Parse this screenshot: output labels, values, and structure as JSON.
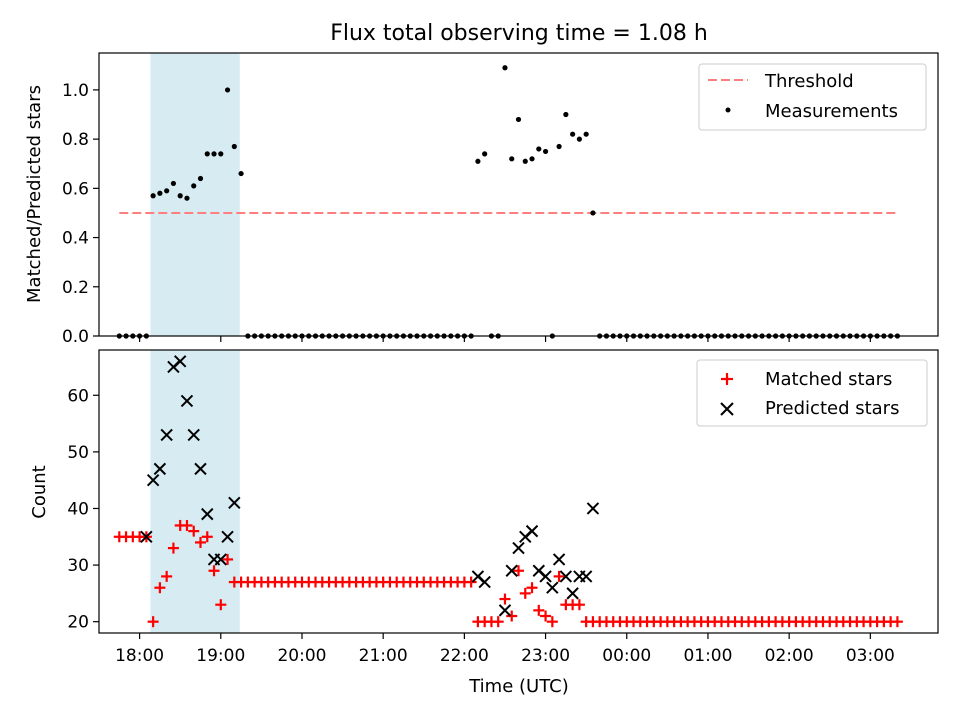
{
  "figure": {
    "title": "Flux total observing time = 1.08 h",
    "xlabel": "Time (UTC)"
  },
  "colors": {
    "threshold": "#ff7f7f",
    "measurements": "#000000",
    "matched": "#ff0000",
    "predicted": "#000000",
    "observing_window": "#add8e6"
  },
  "chart_data": [
    {
      "type": "scatter",
      "title": "Flux total observing time = 1.08 h",
      "ylabel": "Matched/Predicted stars",
      "xlabel": "",
      "x_unit": "UTC time (hours; values above 24 are after midnight)",
      "xlim": [
        "17:30",
        "03:50"
      ],
      "ylim": [
        0.0,
        1.15
      ],
      "yticks": [
        "0.0",
        "0.2",
        "0.4",
        "0.6",
        "0.8",
        "1.0"
      ],
      "legend_position": "top-right",
      "grid": false,
      "shaded_span": [
        "18:08",
        "19:14"
      ],
      "series": [
        {
          "name": "Threshold",
          "kind": "line-dashed",
          "x": [
            "17:45",
            "03:20"
          ],
          "y": [
            0.5,
            0.5
          ]
        },
        {
          "name": "Measurements",
          "kind": "dot",
          "x": [
            "17:45",
            "17:50",
            "17:55",
            "18:00",
            "18:05",
            "18:10",
            "18:15",
            "18:20",
            "18:25",
            "18:30",
            "18:35",
            "18:40",
            "18:45",
            "18:50",
            "18:55",
            "19:00",
            "19:05",
            "19:10",
            "19:15",
            "19:20",
            "19:25",
            "19:30",
            "19:35",
            "19:40",
            "19:45",
            "19:50",
            "19:55",
            "20:00",
            "20:05",
            "20:10",
            "20:15",
            "20:20",
            "20:25",
            "20:30",
            "20:35",
            "20:40",
            "20:45",
            "20:50",
            "20:55",
            "21:00",
            "21:05",
            "21:10",
            "21:15",
            "21:20",
            "21:25",
            "21:30",
            "21:35",
            "21:40",
            "21:45",
            "21:50",
            "21:55",
            "22:00",
            "22:05",
            "22:10",
            "22:15",
            "22:20",
            "22:25",
            "22:30",
            "22:35",
            "22:40",
            "22:45",
            "22:50",
            "22:55",
            "23:00",
            "23:05",
            "23:10",
            "23:15",
            "23:20",
            "23:25",
            "23:30",
            "23:35",
            "23:40",
            "23:45",
            "23:50",
            "23:55",
            "00:00",
            "00:05",
            "00:10",
            "00:15",
            "00:20",
            "00:25",
            "00:30",
            "00:35",
            "00:40",
            "00:45",
            "00:50",
            "00:55",
            "01:00",
            "01:05",
            "01:10",
            "01:15",
            "01:20",
            "01:25",
            "01:30",
            "01:35",
            "01:40",
            "01:45",
            "01:50",
            "01:55",
            "02:00",
            "02:05",
            "02:10",
            "02:15",
            "02:20",
            "02:25",
            "02:30",
            "02:35",
            "02:40",
            "02:45",
            "02:50",
            "02:55",
            "03:00",
            "03:05",
            "03:10",
            "03:15",
            "03:20"
          ],
          "y": [
            0,
            0,
            0,
            0,
            0,
            0.57,
            0.58,
            0.59,
            0.62,
            0.57,
            0.56,
            0.61,
            0.64,
            0.74,
            0.74,
            0.74,
            1.0,
            0.77,
            0.66,
            0,
            0,
            0,
            0,
            0,
            0,
            0,
            0,
            0,
            0,
            0,
            0,
            0,
            0,
            0,
            0,
            0,
            0,
            0,
            0,
            0,
            0,
            0,
            0,
            0,
            0,
            0,
            0,
            0,
            0,
            0,
            0,
            0,
            0,
            0.71,
            0.74,
            0,
            0,
            1.09,
            0.72,
            0.88,
            0.71,
            0.72,
            0.76,
            0.75,
            0,
            0.77,
            0.9,
            0.82,
            0.8,
            0.82,
            0.5,
            0,
            0,
            0,
            0,
            0,
            0,
            0,
            0,
            0,
            0,
            0,
            0,
            0,
            0,
            0,
            0,
            0,
            0,
            0,
            0,
            0,
            0,
            0,
            0,
            0,
            0,
            0,
            0,
            0,
            0,
            0,
            0,
            0,
            0,
            0,
            0,
            0,
            0,
            0,
            0,
            0,
            0,
            0,
            0,
            0
          ]
        }
      ]
    },
    {
      "type": "scatter",
      "title": "",
      "ylabel": "Count",
      "xlabel": "Time (UTC)",
      "x_unit": "UTC time (hours; values above 24 are after midnight)",
      "xlim": [
        "17:30",
        "03:50"
      ],
      "ylim": [
        18,
        68
      ],
      "yticks": [
        "20",
        "30",
        "40",
        "50",
        "60"
      ],
      "xticks": [
        "18:00",
        "19:00",
        "20:00",
        "21:00",
        "22:00",
        "23:00",
        "00:00",
        "01:00",
        "02:00",
        "03:00"
      ],
      "legend_position": "top-right",
      "grid": false,
      "shaded_span": [
        "18:08",
        "19:14"
      ],
      "series": [
        {
          "name": "Matched stars",
          "marker": "plus",
          "x": [
            "17:45",
            "17:50",
            "17:55",
            "18:00",
            "18:05",
            "18:10",
            "18:15",
            "18:20",
            "18:25",
            "18:30",
            "18:35",
            "18:40",
            "18:45",
            "18:50",
            "18:55",
            "19:00",
            "19:05",
            "19:10",
            "19:15",
            "19:20",
            "19:25",
            "19:30",
            "19:35",
            "19:40",
            "19:45",
            "19:50",
            "19:55",
            "20:00",
            "20:05",
            "20:10",
            "20:15",
            "20:20",
            "20:25",
            "20:30",
            "20:35",
            "20:40",
            "20:45",
            "20:50",
            "20:55",
            "21:00",
            "21:05",
            "21:10",
            "21:15",
            "21:20",
            "21:25",
            "21:30",
            "21:35",
            "21:40",
            "21:45",
            "21:50",
            "21:55",
            "22:00",
            "22:05",
            "22:10",
            "22:15",
            "22:20",
            "22:25",
            "22:30",
            "22:35",
            "22:40",
            "22:45",
            "22:50",
            "22:55",
            "23:00",
            "23:05",
            "23:10",
            "23:15",
            "23:20",
            "23:25",
            "23:30",
            "23:35",
            "23:40",
            "23:45",
            "23:50",
            "23:55",
            "00:00",
            "00:05",
            "00:10",
            "00:15",
            "00:20",
            "00:25",
            "00:30",
            "00:35",
            "00:40",
            "00:45",
            "00:50",
            "00:55",
            "01:00",
            "01:05",
            "01:10",
            "01:15",
            "01:20",
            "01:25",
            "01:30",
            "01:35",
            "01:40",
            "01:45",
            "01:50",
            "01:55",
            "02:00",
            "02:05",
            "02:10",
            "02:15",
            "02:20",
            "02:25",
            "02:30",
            "02:35",
            "02:40",
            "02:45",
            "02:50",
            "02:55",
            "03:00",
            "03:05",
            "03:10",
            "03:15",
            "03:20"
          ],
          "y": [
            35,
            35,
            35,
            35,
            35,
            20,
            26,
            28,
            33,
            37,
            37,
            36,
            34,
            35,
            29,
            23,
            31,
            27,
            27,
            27,
            27,
            27,
            27,
            27,
            27,
            27,
            27,
            27,
            27,
            27,
            27,
            27,
            27,
            27,
            27,
            27,
            27,
            27,
            27,
            27,
            27,
            27,
            27,
            27,
            27,
            27,
            27,
            27,
            27,
            27,
            27,
            27,
            27,
            20,
            20,
            20,
            20,
            24,
            21,
            29,
            25,
            26,
            22,
            21,
            20,
            28,
            23,
            23,
            23,
            20,
            20,
            20,
            20,
            20,
            20,
            20,
            20,
            20,
            20,
            20,
            20,
            20,
            20,
            20,
            20,
            20,
            20,
            20,
            20,
            20,
            20,
            20,
            20,
            20,
            20,
            20,
            20,
            20,
            20,
            20,
            20,
            20,
            20,
            20,
            20,
            20,
            20,
            20,
            20,
            20,
            20,
            20,
            20,
            20,
            20,
            20
          ]
        },
        {
          "name": "Predicted stars",
          "marker": "x",
          "x": [
            "18:05",
            "18:10",
            "18:15",
            "18:20",
            "18:25",
            "18:30",
            "18:35",
            "18:40",
            "18:45",
            "18:50",
            "18:55",
            "19:00",
            "19:05",
            "19:10",
            "22:10",
            "22:15",
            "22:30",
            "22:35",
            "22:40",
            "22:45",
            "22:50",
            "22:55",
            "23:00",
            "23:05",
            "23:10",
            "23:15",
            "23:20",
            "23:25",
            "23:30",
            "23:35"
          ],
          "y": [
            35,
            45,
            47,
            53,
            65,
            66,
            59,
            53,
            47,
            39,
            31,
            31,
            35,
            41,
            28,
            27,
            22,
            29,
            33,
            35,
            36,
            29,
            28,
            26,
            31,
            28,
            25,
            28,
            28,
            40
          ]
        }
      ]
    }
  ]
}
